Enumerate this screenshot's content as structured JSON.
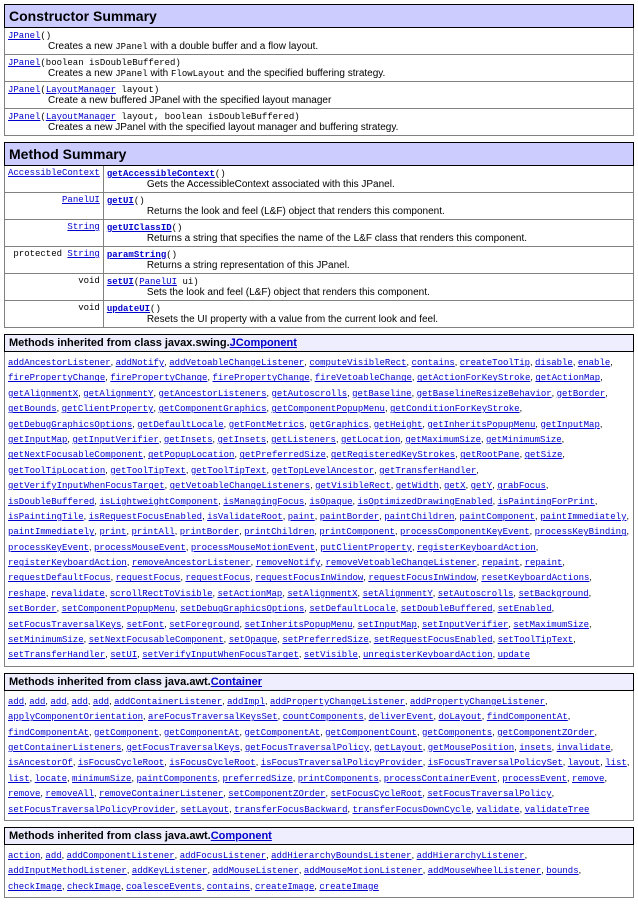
{
  "constructor": {
    "title": "Constructor Summary",
    "rows": [
      {
        "sig": [
          "JPanel",
          "()"
        ],
        "desc": [
          "Creates a new ",
          "JPanel",
          " with a double buffer and a flow layout."
        ]
      },
      {
        "sig": [
          "JPanel",
          "(boolean isDoubleBuffered)"
        ],
        "desc": [
          "Creates a new ",
          "JPanel",
          " with ",
          "FlowLayout",
          " and the specified buffering strategy."
        ]
      },
      {
        "sig": [
          "JPanel",
          "(",
          "LayoutManager",
          " layout)"
        ],
        "desc": [
          "Create a new buffered JPanel with the specified layout manager"
        ]
      },
      {
        "sig": [
          "JPanel",
          "(",
          "LayoutManager",
          " layout, boolean isDoubleBuffered)"
        ],
        "desc": [
          "Creates a new JPanel with the specified layout manager and buffering strategy."
        ]
      }
    ]
  },
  "method": {
    "title": "Method Summary",
    "rows": [
      {
        "mod": "AccessibleContext",
        "link": true,
        "name": "getAccessibleContext",
        "args": "()",
        "desc": "Gets the AccessibleContext associated with this JPanel."
      },
      {
        "mod": "PanelUI",
        "link": true,
        "name": "getUI",
        "args": "()",
        "desc": "Returns the look and feel (L&F) object that renders this component."
      },
      {
        "mod": "String",
        "link": true,
        "name": "getUIClassID",
        "args": "()",
        "desc": "Returns a string that specifies the name of the L&F class that renders this component."
      },
      {
        "mod": "protected  String",
        "link": "String",
        "name": "paramString",
        "args": "()",
        "desc": "Returns a string representation of this JPanel."
      },
      {
        "mod": "void",
        "link": false,
        "name": "setUI",
        "args": "(PanelUI ui)",
        "arglink": "PanelUI",
        "desc": "Sets the look and feel (L&F) object that renders this component."
      },
      {
        "mod": "void",
        "link": false,
        "name": "updateUI",
        "args": "()",
        "desc": "Resets the UI property with a value from the current look and feel."
      }
    ]
  },
  "inh": [
    {
      "title": "Methods inherited from class javax.swing.",
      "cls": "JComponent",
      "m": [
        "addAncestorListener",
        "addNotify",
        "addVetoableChangeListener",
        "computeVisibleRect",
        "contains",
        "createToolTip",
        "disable",
        "enable",
        "firePropertyChange",
        "firePropertyChange",
        "firePropertyChange",
        "fireVetoableChange",
        "getActionForKeyStroke",
        "getActionMap",
        "getAlignmentX",
        "getAlignmentY",
        "getAncestorListeners",
        "getAutoscrolls",
        "getBaseline",
        "getBaselineResizeBehavior",
        "getBorder",
        "getBounds",
        "getClientProperty",
        "getComponentGraphics",
        "getComponentPopupMenu",
        "getConditionForKeyStroke",
        "getDebugGraphicsOptions",
        "getDefaultLocale",
        "getFontMetrics",
        "getGraphics",
        "getHeight",
        "getInheritsPopupMenu",
        "getInputMap",
        "getInputMap",
        "getInputVerifier",
        "getInsets",
        "getInsets",
        "getListeners",
        "getLocation",
        "getMaximumSize",
        "getMinimumSize",
        "getNextFocusableComponent",
        "getPopupLocation",
        "getPreferredSize",
        "getRegisteredKeyStrokes",
        "getRootPane",
        "getSize",
        "getToolTipLocation",
        "getToolTipText",
        "getToolTipText",
        "getTopLevelAncestor",
        "getTransferHandler",
        "getVerifyInputWhenFocusTarget",
        "getVetoableChangeListeners",
        "getVisibleRect",
        "getWidth",
        "getX",
        "getY",
        "grabFocus",
        "isDoubleBuffered",
        "isLightweightComponent",
        "isManagingFocus",
        "isOpaque",
        "isOptimizedDrawingEnabled",
        "isPaintingForPrint",
        "isPaintingTile",
        "isRequestFocusEnabled",
        "isValidateRoot",
        "paint",
        "paintBorder",
        "paintChildren",
        "paintComponent",
        "paintImmediately",
        "paintImmediately",
        "print",
        "printAll",
        "printBorder",
        "printChildren",
        "printComponent",
        "processComponentKeyEvent",
        "processKeyBinding",
        "processKeyEvent",
        "processMouseEvent",
        "processMouseMotionEvent",
        "putClientProperty",
        "registerKeyboardAction",
        "registerKeyboardAction",
        "removeAncestorListener",
        "removeNotify",
        "removeVetoableChangeListener",
        "repaint",
        "repaint",
        "requestDefaultFocus",
        "requestFocus",
        "requestFocus",
        "requestFocusInWindow",
        "requestFocusInWindow",
        "resetKeyboardActions",
        "reshape",
        "revalidate",
        "scrollRectToVisible",
        "setActionMap",
        "setAlignmentX",
        "setAlignmentY",
        "setAutoscrolls",
        "setBackground",
        "setBorder",
        "setComponentPopupMenu",
        "setDebugGraphicsOptions",
        "setDefaultLocale",
        "setDoubleBuffered",
        "setEnabled",
        "setFocusTraversalKeys",
        "setFont",
        "setForeground",
        "setInheritsPopupMenu",
        "setInputMap",
        "setInputVerifier",
        "setMaximumSize",
        "setMinimumSize",
        "setNextFocusableComponent",
        "setOpaque",
        "setPreferredSize",
        "setRequestFocusEnabled",
        "setToolTipText",
        "setTransferHandler",
        "setUI",
        "setVerifyInputWhenFocusTarget",
        "setVisible",
        "unregisterKeyboardAction",
        "update"
      ]
    },
    {
      "title": "Methods inherited from class java.awt.",
      "cls": "Container",
      "m": [
        "add",
        "add",
        "add",
        "add",
        "add",
        "addContainerListener",
        "addImpl",
        "addPropertyChangeListener",
        "addPropertyChangeListener",
        "applyComponentOrientation",
        "areFocusTraversalKeysSet",
        "countComponents",
        "deliverEvent",
        "doLayout",
        "findComponentAt",
        "findComponentAt",
        "getComponent",
        "getComponentAt",
        "getComponentAt",
        "getComponentCount",
        "getComponents",
        "getComponentZOrder",
        "getContainerListeners",
        "getFocusTraversalKeys",
        "getFocusTraversalPolicy",
        "getLayout",
        "getMousePosition",
        "insets",
        "invalidate",
        "isAncestorOf",
        "isFocusCycleRoot",
        "isFocusCycleRoot",
        "isFocusTraversalPolicyProvider",
        "isFocusTraversalPolicySet",
        "layout",
        "list",
        "list",
        "locate",
        "minimumSize",
        "paintComponents",
        "preferredSize",
        "printComponents",
        "processContainerEvent",
        "processEvent",
        "remove",
        "remove",
        "removeAll",
        "removeContainerListener",
        "setComponentZOrder",
        "setFocusCycleRoot",
        "setFocusTraversalPolicy",
        "setFocusTraversalPolicyProvider",
        "setLayout",
        "transferFocusBackward",
        "transferFocusDownCycle",
        "validate",
        "validateTree"
      ]
    },
    {
      "title": "Methods inherited from class java.awt.",
      "cls": "Component",
      "m": [
        "action",
        "add",
        "addComponentListener",
        "addFocusListener",
        "addHierarchyBoundsListener",
        "addHierarchyListener",
        "addInputMethodListener",
        "addKeyListener",
        "addMouseListener",
        "addMouseMotionListener",
        "addMouseWheelListener",
        "bounds",
        "checkImage",
        "checkImage",
        "coalesceEvents",
        "contains",
        "createImage",
        "createImage"
      ]
    }
  ]
}
